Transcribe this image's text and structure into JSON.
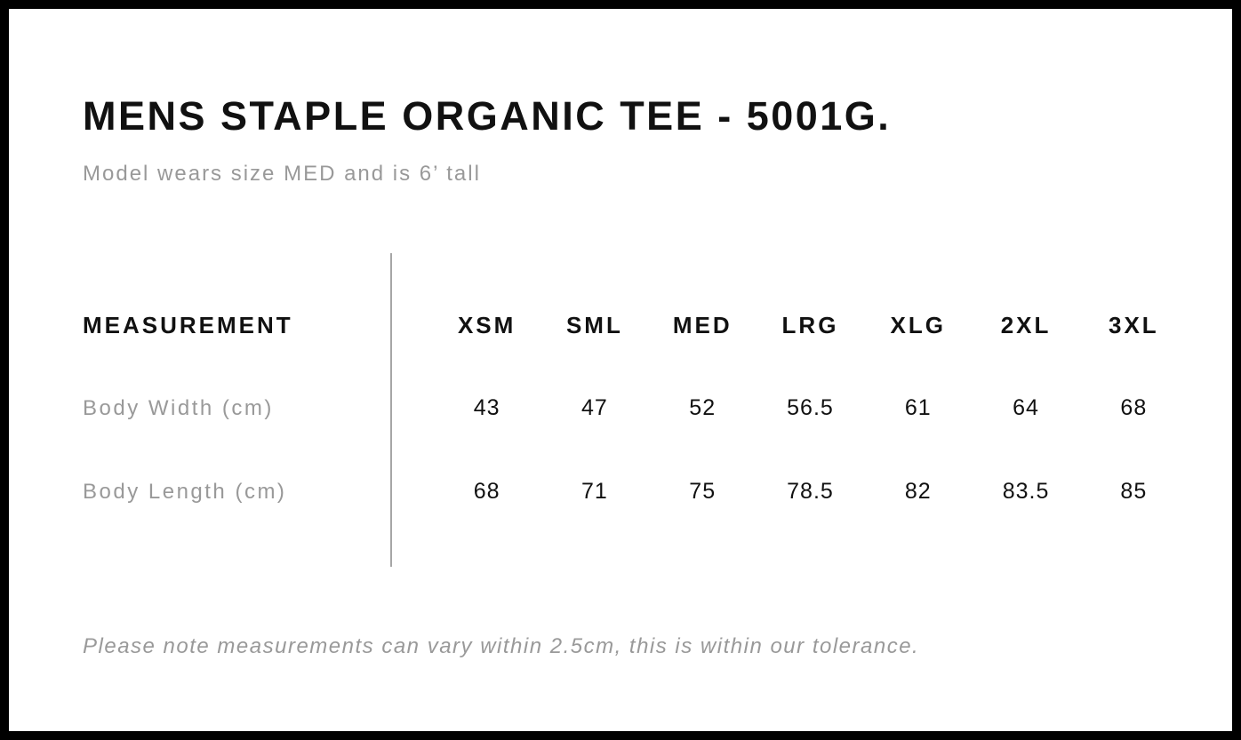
{
  "page": {
    "title": "MENS STAPLE ORGANIC TEE - 5001G.",
    "subtitle": "Model wears size MED and is 6’ tall",
    "footer_note": "Please note measurements can vary within 2.5cm, this is within our tolerance."
  },
  "size_chart": {
    "measurement_header": "MEASUREMENT",
    "size_headers": [
      "XSM",
      "SML",
      "MED",
      "LRG",
      "XLG",
      "2XL",
      "3XL"
    ],
    "rows": [
      {
        "label": "Body Width (cm)",
        "values": [
          "43",
          "47",
          "52",
          "56.5",
          "61",
          "64",
          "68"
        ]
      },
      {
        "label": "Body Length (cm)",
        "values": [
          "68",
          "71",
          "75",
          "78.5",
          "82",
          "83.5",
          "85"
        ]
      }
    ]
  },
  "colors": {
    "border": "#000000",
    "text_primary": "#111111",
    "text_secondary": "#999999",
    "divider": "#a6a6a6",
    "background": "#ffffff"
  }
}
